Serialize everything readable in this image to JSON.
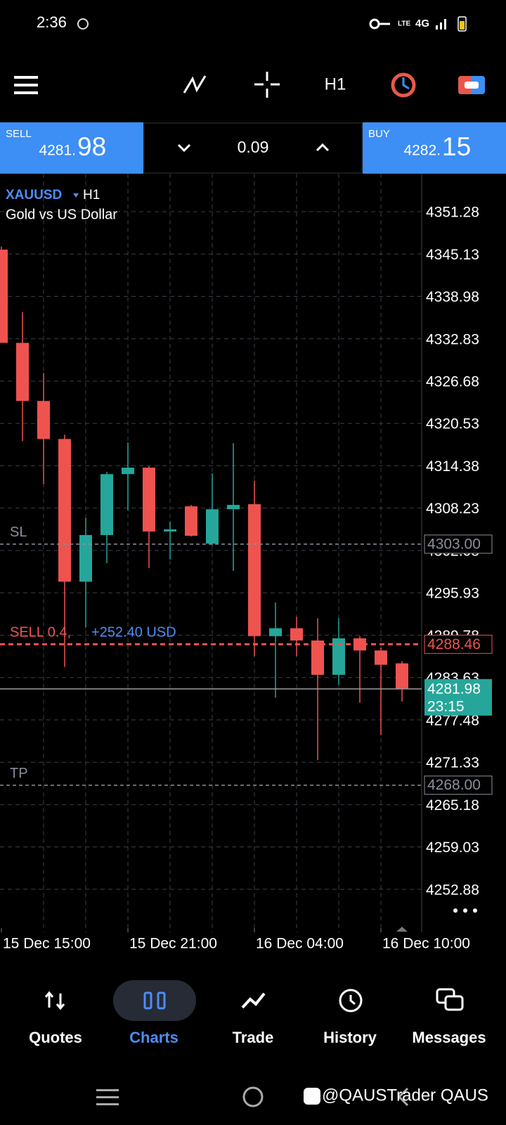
{
  "status_bar": {
    "time": "2:36",
    "network_type": "LTE",
    "network": "4G"
  },
  "toolbar": {
    "timeframe": "H1"
  },
  "trade_panel": {
    "sell_label": "SELL",
    "sell_price_small": "4281.",
    "sell_price_big": "98",
    "lot": "0.09",
    "buy_label": "BUY",
    "buy_price_small": "4282.",
    "buy_price_big": "15"
  },
  "chart_data": {
    "type": "candlestick",
    "symbol": "XAUUSD",
    "timeframe": "H1",
    "subtitle": "Gold vs US Dollar",
    "categories": [
      "15 Dec 15:00",
      null,
      null,
      null,
      null,
      null,
      "15 Dec 21:00",
      null,
      null,
      null,
      null,
      null,
      "16 Dec 04:00",
      null,
      null,
      null,
      null,
      null,
      "16 Dec 10:00",
      null
    ],
    "open": [
      4345.76,
      4332.23,
      4323.79,
      4318.27,
      4297.55,
      4304.32,
      4313.17,
      4314.11,
      4304.84,
      4308.49,
      4303.07,
      4308.07,
      4308.8,
      4289.64,
      4290.79,
      4289.01,
      4284.02,
      4289.33,
      4287.56,
      4285.69
    ],
    "high": [
      4346.2,
      4336.7,
      4327.85,
      4318.9,
      4306.82,
      4313.48,
      4317.75,
      4314.32,
      4306.3,
      4308.7,
      4313.27,
      4317.65,
      4312.23,
      4294.53,
      4292.45,
      4292.24,
      4292.24,
      4289.64,
      4287.97,
      4286.0
    ],
    "low": [
      4332.23,
      4317.96,
      4311.71,
      4285.16,
      4290.89,
      4300.26,
      4307.86,
      4299.53,
      4300.78,
      4304.11,
      4302.86,
      4299.11,
      4286.72,
      4280.68,
      4286.72,
      4271.63,
      4282.56,
      4279.96,
      4275.27,
      4280.16
    ],
    "close": [
      4332.23,
      4323.79,
      4318.27,
      4297.55,
      4304.32,
      4313.17,
      4314.11,
      4304.84,
      4305.15,
      4304.22,
      4308.07,
      4308.7,
      4289.64,
      4290.79,
      4289.01,
      4284.02,
      4289.33,
      4287.56,
      4285.48,
      4281.98
    ],
    "up_color": "#26a69a",
    "down_color": "#ef5350",
    "ylim": [
      4246.63,
      4356.49
    ],
    "yticks": [
      4351.28,
      4345.13,
      4338.98,
      4332.83,
      4326.68,
      4320.53,
      4314.38,
      4308.23,
      4302.08,
      4295.93,
      4289.78,
      4283.63,
      4277.48,
      4271.33,
      4265.18,
      4259.03,
      4252.88
    ],
    "grid": true,
    "levels": [
      {
        "label": "SL",
        "price": {
          "value": 4303,
          "label": "4303.00"
        },
        "color": "#8a8f9a"
      },
      {
        "label": "TP",
        "price": {
          "value": 4268,
          "label": "4268.00"
        },
        "color": "#8a8f9a"
      },
      {
        "label": "SELL 0.4,",
        "profit": "+252.40 USD",
        "price": 4288.46,
        "color": "#ef5350"
      },
      {
        "price": 4281.98,
        "timer": "23:15",
        "color": "#26a69a"
      }
    ]
  },
  "nav": {
    "items": [
      "Quotes",
      "Charts",
      "Trade",
      "History",
      "Messages"
    ],
    "active": "Charts"
  },
  "watermark": "@QAUSTrader QAUS"
}
